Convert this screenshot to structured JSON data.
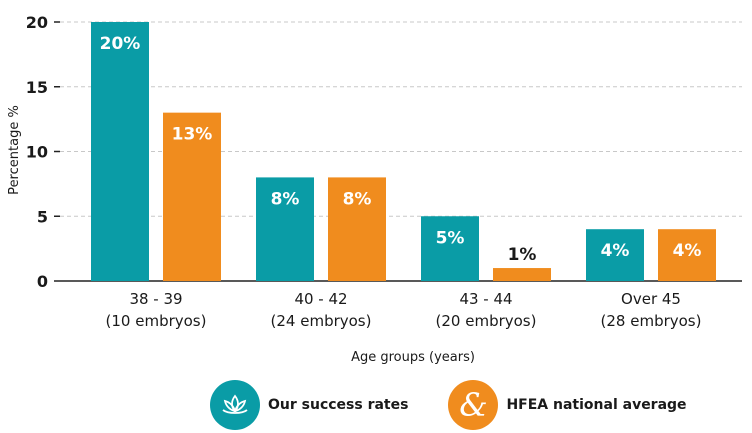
{
  "chart_data": {
    "type": "bar",
    "categories": [
      [
        "38 - 39",
        "(10 embryos)"
      ],
      [
        "40 - 42",
        "(24 embryos)"
      ],
      [
        "43 - 44",
        "(20 embryos)"
      ],
      [
        "Over 45",
        "(28 embryos)"
      ]
    ],
    "series": [
      {
        "name": "Our success rates",
        "values": [
          20,
          8,
          5,
          4
        ],
        "labels": [
          "20%",
          "8%",
          "5%",
          "4%"
        ],
        "color": "#0a9ca6",
        "icon": "lotus-icon"
      },
      {
        "name": "HFEA national average",
        "values": [
          13,
          8,
          1,
          4
        ],
        "labels": [
          "13%",
          "8%",
          "1%",
          "4%"
        ],
        "color": "#f08c1e",
        "icon": "ampersand-icon"
      }
    ],
    "xlabel": "Age groups (years)",
    "ylabel": "Percentage %",
    "ylim": [
      0,
      20
    ],
    "yticks": [
      0,
      5,
      10,
      15,
      20
    ],
    "grid": true,
    "legend_position": "bottom-center"
  }
}
